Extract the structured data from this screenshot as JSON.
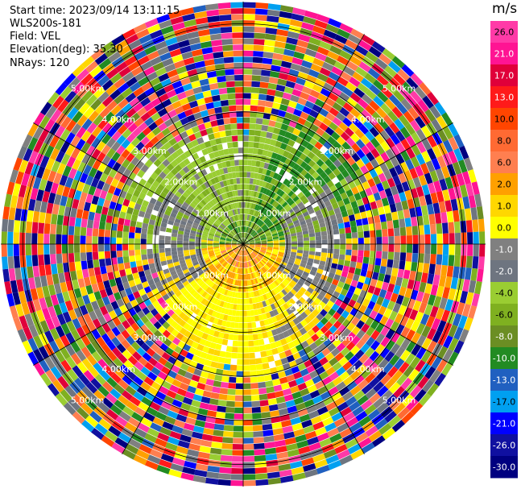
{
  "info": {
    "start_time": "Start time: 2023/09/14 13:11:15",
    "instrument": "WLS200s-181",
    "field": "Field: VEL",
    "elevation": "Elevation(deg): 35.30",
    "nrays": "NRays: 120"
  },
  "chart_data": {
    "type": "heatmap",
    "projection": "polar-ppi",
    "rays": 120,
    "range_rings_km": [
      1.0,
      2.0,
      3.0,
      4.0,
      5.0
    ],
    "range_ring_labels": [
      "1.00km",
      "2.00km",
      "3.00km",
      "4.00km",
      "5.00km"
    ],
    "max_range_km": 5.5,
    "azimuth_lines_deg": [
      0,
      30,
      60,
      90,
      120,
      150,
      180,
      210,
      240,
      270,
      300,
      330
    ],
    "colorbar": {
      "unit": "m/s",
      "ticks": [
        "26.0",
        "21.0",
        "17.0",
        "13.0",
        "10.0",
        "8.0",
        "6.0",
        "2.0",
        "1.0",
        "0.0",
        "-1.0",
        "-2.0",
        "-4.0",
        "-6.0",
        "-8.0",
        "-10.0",
        "-13.0",
        "-17.0",
        "-21.0",
        "-26.0",
        "-30.0"
      ],
      "colors": [
        "#ff3aa7",
        "#ff1493",
        "#e0003a",
        "#ff1a1a",
        "#ff4500",
        "#ff6a33",
        "#ff7f50",
        "#ffa000",
        "#ffd700",
        "#ffff00",
        "#808080",
        "#6e7580",
        "#9acd32",
        "#7fb020",
        "#6b8e23",
        "#228b22",
        "#2060c0",
        "#00a0f0",
        "#0000ff",
        "#1010a0",
        "#000080"
      ]
    },
    "fields": {
      "inner_region": "wind velocities mostly -4 to 6 m/s (green north/northwest, yellow-orange south/southwest, gray near zero)",
      "outer_region": "noise beyond ~2.5 km"
    }
  }
}
